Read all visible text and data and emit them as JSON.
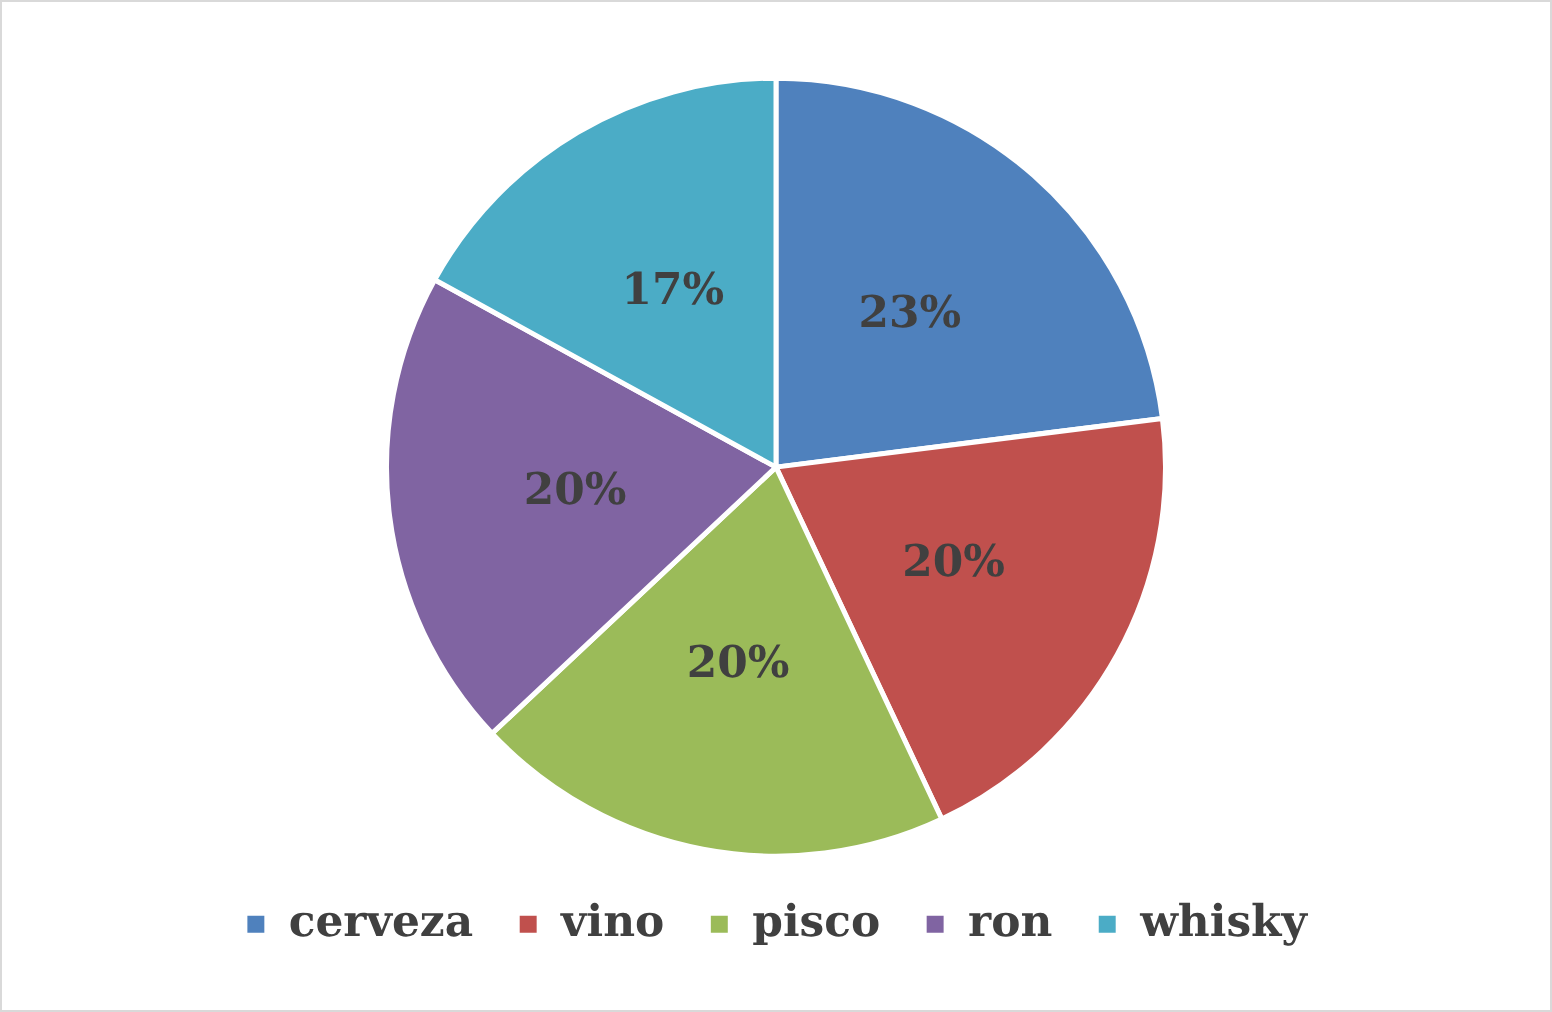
{
  "chart_data": {
    "type": "pie",
    "categories": [
      "cerveza",
      "vino",
      "pisco",
      "ron",
      "whisky"
    ],
    "values": [
      23,
      20,
      20,
      20,
      17
    ],
    "colors": [
      "#4f81bd",
      "#c0504d",
      "#9bbb59",
      "#8064a2",
      "#4bacc6"
    ],
    "value_labels": [
      "23%",
      "20%",
      "20%",
      "20%",
      "17%"
    ],
    "legend": "bottom"
  }
}
